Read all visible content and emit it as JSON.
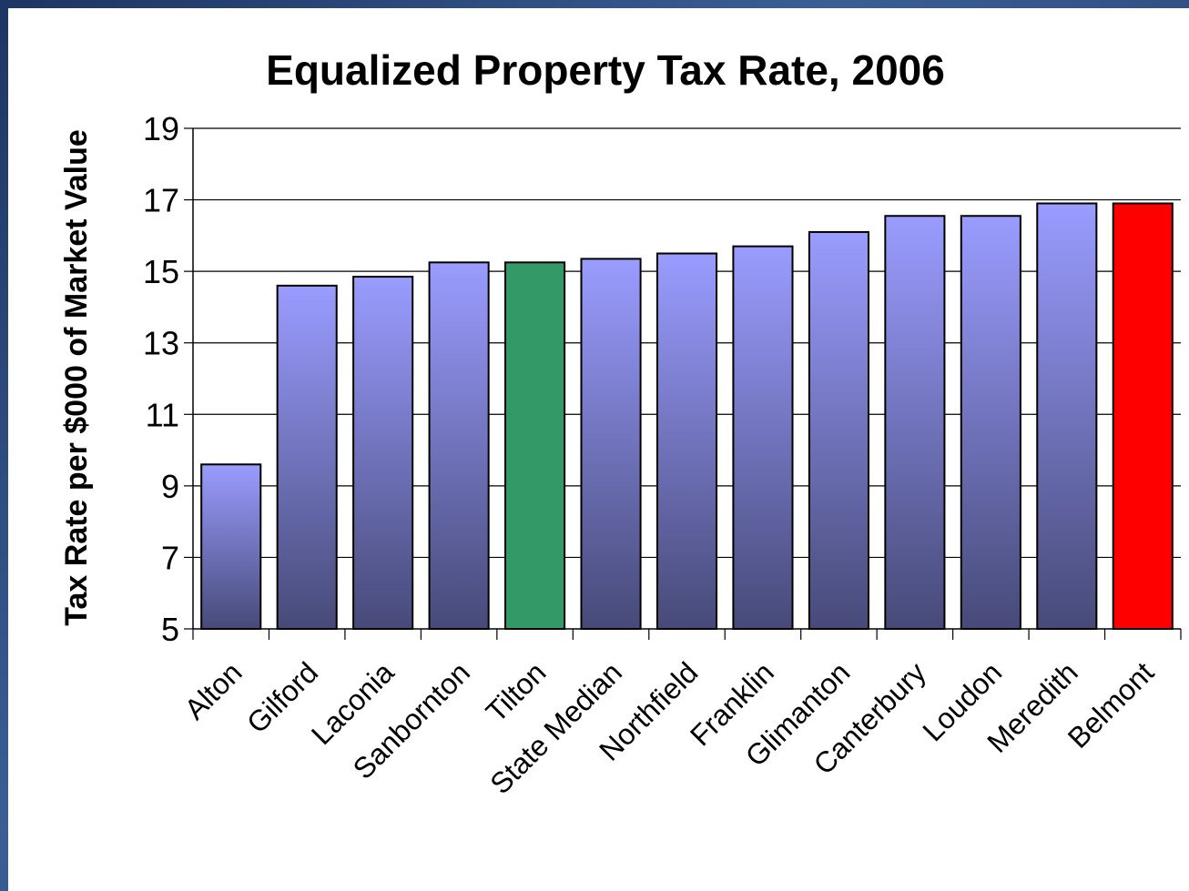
{
  "chart_data": {
    "type": "bar",
    "title": "Equalized Property Tax Rate, 2006",
    "xlabel": "",
    "ylabel": "Tax Rate per $000 of Market Value",
    "ylim": [
      5,
      19
    ],
    "yticks": [
      5,
      7,
      9,
      11,
      13,
      15,
      17,
      19
    ],
    "grid": true,
    "categories": [
      "Alton",
      "Gilford",
      "Laconia",
      "Sanbornton",
      "Tilton",
      "State Median",
      "Northfield",
      "Franklin",
      "Glimanton",
      "Canterbury",
      "Loudon",
      "Meredith",
      "Belmont"
    ],
    "values": [
      9.6,
      14.6,
      14.85,
      15.25,
      15.25,
      15.35,
      15.5,
      15.7,
      16.1,
      16.55,
      16.55,
      16.9,
      16.9
    ],
    "bar_colors": {
      "default_gradient": [
        "#9a9cff",
        "#474a78"
      ],
      "Tilton": "#339966",
      "Belmont": "#ff0000"
    }
  }
}
